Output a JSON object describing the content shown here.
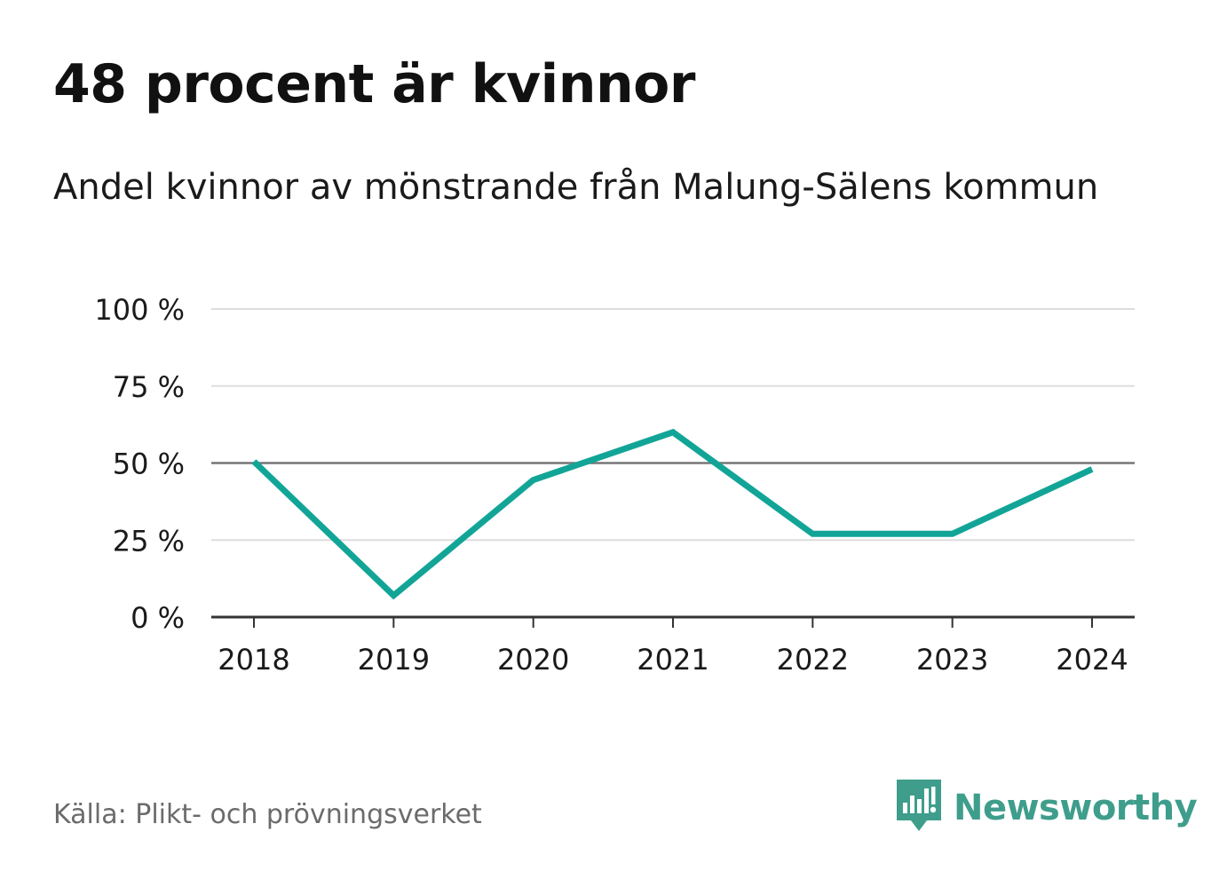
{
  "title": "48 procent är kvinnor",
  "subtitle": "Andel kvinnor av mönstrande från Malung-Sälens kommun",
  "source": "Källa: Plikt- och prövningsverket",
  "brand": {
    "name": "Newsworthy",
    "icon": "newsworthy-logo-icon"
  },
  "colors": {
    "line": "#12a597",
    "grid": "#dddddd",
    "reference": "#777777",
    "axis": "#333333",
    "brand": "#3f9d8c"
  },
  "chart_data": {
    "type": "line",
    "title": "48 procent är kvinnor",
    "subtitle": "Andel kvinnor av mönstrande från Malung-Sälens kommun",
    "xlabel": "",
    "ylabel": "",
    "categories": [
      "2018",
      "2019",
      "2020",
      "2021",
      "2022",
      "2023",
      "2024"
    ],
    "series": [
      {
        "name": "Andel kvinnor",
        "values": [
          50.5,
          7,
          44.5,
          60,
          27,
          27,
          48
        ]
      }
    ],
    "ylim": [
      0,
      100
    ],
    "yticks": [
      0,
      25,
      50,
      75,
      100
    ],
    "ytick_labels": [
      "0 %",
      "25 %",
      "50 %",
      "75 %",
      "100 %"
    ],
    "reference_line": 50,
    "grid": true,
    "legend": "none"
  }
}
